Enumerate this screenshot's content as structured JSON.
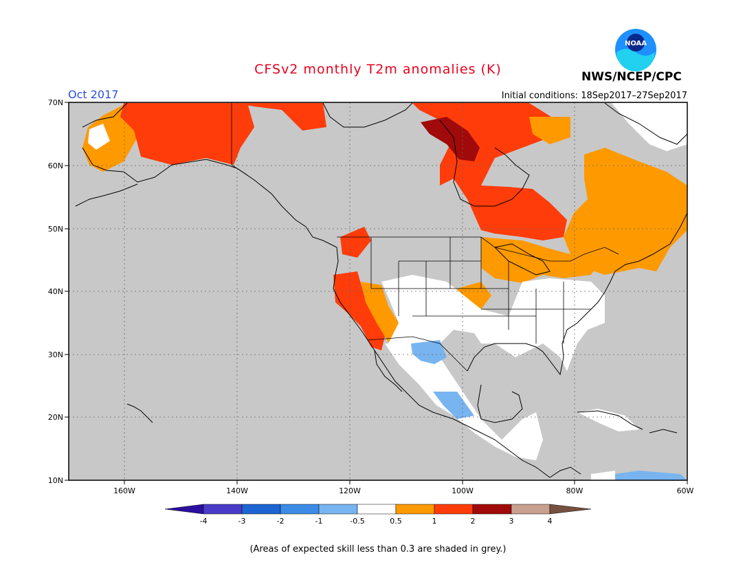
{
  "header": {
    "title": "CFSv2 monthly T2m anomalies (K)",
    "period": "Oct 2017",
    "initial_conditions": "Initial conditions: 18Sep2017–27Sep2017",
    "agency": "NWS/NCEP/CPC",
    "logo_text": "NOAA"
  },
  "map": {
    "lat_labels": [
      "70N",
      "60N",
      "50N",
      "40N",
      "30N",
      "20N",
      "10N"
    ],
    "lon_labels": [
      "160W",
      "140W",
      "120W",
      "100W",
      "80W",
      "60W"
    ],
    "background_color": "#c8c8c8"
  },
  "legend": {
    "ticks": [
      "-4",
      "-3",
      "-2",
      "-1",
      "-0.5",
      "0.5",
      "1",
      "2",
      "3",
      "4"
    ],
    "colors": [
      "#2a0fa0",
      "#4a3cc8",
      "#1e64d2",
      "#3c8ce6",
      "#78b4f0",
      "#ffffff",
      "#ff9900",
      "#ff3c0a",
      "#a00a0a",
      "#c8a090",
      "#785040"
    ]
  },
  "footer": {
    "note": "(Areas of expected skill less than 0.3 are shaded in grey.)"
  }
}
